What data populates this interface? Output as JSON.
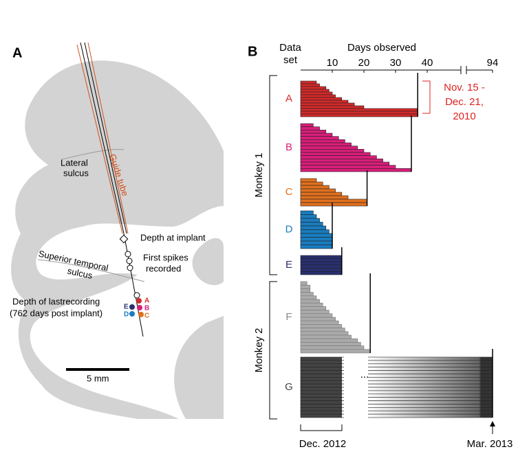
{
  "panel_a": {
    "letter": "A",
    "lateral_sulcus": [
      "Lateral",
      "sulcus"
    ],
    "guide_tube": "Guide tube",
    "depth_at_implant": "Depth at implant",
    "first_spikes": [
      "First spikes",
      "recorded"
    ],
    "sts": [
      "Superior temporal",
      "sulcus"
    ],
    "last_recording": [
      "Depth of lastrecording",
      "(762 days post implant)"
    ],
    "scale_bar": "5 mm",
    "dots": [
      "A",
      "B",
      "C",
      "D",
      "E"
    ]
  },
  "chart_data": {
    "type": "bar",
    "panel": "B",
    "row_header": [
      "Data",
      "set"
    ],
    "x_label": "Days observed",
    "xticks": [
      10,
      20,
      30,
      40,
      94
    ],
    "xlim": [
      0,
      94
    ],
    "groups": [
      "Monkey 1",
      "Monkey 2"
    ],
    "annotation": [
      "Nov. 15 -",
      "Dec. 21,",
      "2010"
    ],
    "start_label": "Dec. 2012",
    "end_label": "Mar. 2013",
    "continuation": "...",
    "series": [
      {
        "name": "A",
        "color": "#d42a2a",
        "values": [
          5,
          6,
          8,
          9,
          10,
          11,
          13,
          15,
          17,
          20,
          37,
          37,
          37
        ]
      },
      {
        "name": "B",
        "color": "#d81e7a",
        "values": [
          4,
          6,
          8,
          10,
          12,
          14,
          16,
          18,
          20,
          22,
          24,
          26,
          28,
          30,
          35
        ]
      },
      {
        "name": "C",
        "color": "#e0701e",
        "values": [
          5,
          7,
          9,
          11,
          13,
          15,
          21,
          21
        ]
      },
      {
        "name": "D",
        "color": "#1a7cc0",
        "values": [
          4,
          5,
          6,
          7,
          8,
          9,
          10,
          10,
          10,
          10
        ]
      },
      {
        "name": "E",
        "color": "#2a2f6e",
        "values": [
          13,
          13,
          13,
          13,
          13,
          13
        ]
      },
      {
        "name": "F",
        "color": "#aaaaaa",
        "values": [
          2,
          3,
          3,
          4,
          5,
          6,
          7,
          8,
          9,
          10,
          11,
          12,
          13,
          14,
          15,
          16,
          18,
          19,
          20,
          22
        ]
      },
      {
        "name": "G",
        "color": "#444444",
        "values": [
          94,
          94,
          94,
          94,
          94,
          94,
          94,
          94,
          94,
          94,
          94,
          94,
          94,
          94,
          94,
          94,
          94,
          94
        ]
      }
    ]
  }
}
